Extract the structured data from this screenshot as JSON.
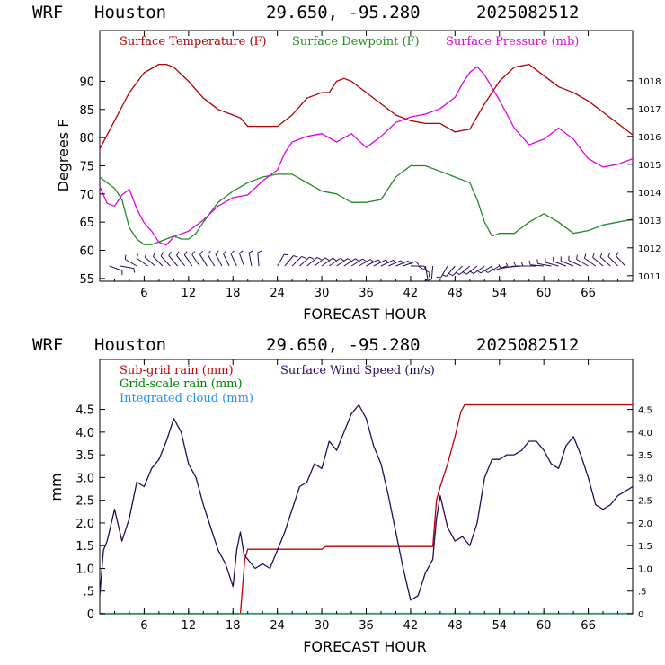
{
  "colors": {
    "temperature": "#b00000",
    "dewpoint": "#228b22",
    "pressure": "#e000e0",
    "subgrid": "#c00000",
    "gridscale": "#008000",
    "cloud": "#1e90ff",
    "wind": "#2a0a5a",
    "barb": "#2a0a5a"
  },
  "chart_data": [
    {
      "type": "line",
      "header": {
        "model": "WRF",
        "location": "Houston",
        "coords": "29.650, -95.280",
        "init": "2025082512"
      },
      "xlabel": "FORECAST HOUR",
      "ylabel": "Degrees F",
      "xlim": [
        0,
        72
      ],
      "ylim": [
        54.5,
        99
      ],
      "ylim_right": [
        1010.8,
        1019.8
      ],
      "xticks": [
        "6",
        "12",
        "18",
        "24",
        "30",
        "36",
        "42",
        "48",
        "54",
        "60",
        "66"
      ],
      "yticks": [
        "55",
        "60",
        "65",
        "70",
        "75",
        "80",
        "85",
        "90"
      ],
      "yticks_right": [
        "1011",
        "1012",
        "1013",
        "1014",
        "1015",
        "1016",
        "1017",
        "1018"
      ],
      "series": [
        {
          "name": "Surface Temperature (F)",
          "axis": "left",
          "x": [
            0,
            2,
            4,
            6,
            8,
            9,
            10,
            12,
            14,
            16,
            18,
            19,
            20,
            22,
            24,
            26,
            28,
            30,
            31,
            32,
            33,
            34,
            36,
            38,
            40,
            42,
            44,
            46,
            48,
            50,
            52,
            54,
            56,
            58,
            60,
            62,
            64,
            66,
            68,
            70,
            72
          ],
          "y": [
            78,
            83,
            88,
            91.5,
            93,
            93,
            92.5,
            90,
            87,
            85,
            84,
            83.5,
            82,
            82,
            82,
            84,
            87,
            88,
            88,
            90,
            90.5,
            90,
            88,
            86,
            84,
            83,
            82.5,
            82.5,
            81,
            81.5,
            86,
            90,
            92.5,
            93,
            91,
            89,
            88,
            86.5,
            84.5,
            82.5,
            80.5
          ]
        },
        {
          "name": "Surface Dewpoint (F)",
          "axis": "left",
          "x": [
            0,
            2,
            3,
            4,
            5,
            6,
            7,
            8,
            9,
            10,
            11,
            12,
            13,
            14,
            16,
            18,
            20,
            22,
            24,
            26,
            28,
            30,
            32,
            34,
            36,
            38,
            40,
            42,
            44,
            46,
            48,
            50,
            51,
            52,
            53,
            54,
            56,
            58,
            60,
            62,
            64,
            66,
            68,
            70,
            72
          ],
          "y": [
            73,
            71,
            69,
            64,
            62,
            61,
            61,
            61.5,
            62,
            62.5,
            62,
            62,
            63,
            65,
            68.5,
            70.5,
            72,
            73,
            73.5,
            73.5,
            72,
            70.5,
            70,
            68.5,
            68.5,
            69,
            73,
            75,
            75,
            74,
            73,
            72,
            69,
            65,
            62.5,
            63,
            63,
            65,
            66.5,
            65,
            63,
            63.5,
            64.5,
            65,
            65.5
          ]
        },
        {
          "name": "Surface Pressure (mb)",
          "axis": "right",
          "x": [
            0,
            1,
            2,
            3,
            4,
            5,
            6,
            7,
            8,
            9,
            10,
            12,
            14,
            16,
            18,
            20,
            22,
            24,
            25,
            26,
            28,
            30,
            32,
            34,
            36,
            38,
            40,
            42,
            44,
            46,
            48,
            49,
            50,
            51,
            52,
            54,
            56,
            58,
            60,
            62,
            64,
            66,
            68,
            70,
            72
          ],
          "y": [
            1014.2,
            1013.6,
            1013.5,
            1013.9,
            1014.1,
            1013.4,
            1012.9,
            1012.6,
            1012.2,
            1012.1,
            1012.4,
            1012.6,
            1013,
            1013.5,
            1013.8,
            1013.9,
            1014.4,
            1014.8,
            1015.4,
            1015.8,
            1016,
            1016.1,
            1015.8,
            1016.1,
            1015.6,
            1016,
            1016.5,
            1016.7,
            1016.8,
            1017,
            1017.4,
            1017.9,
            1018.3,
            1018.5,
            1018.2,
            1017.3,
            1016.3,
            1015.7,
            1015.9,
            1016.3,
            1015.9,
            1015.2,
            1014.9,
            1015,
            1015.2
          ]
        }
      ],
      "wind_barbs": {
        "x": [
          1.3,
          2.8,
          5,
          6.5,
          7.5,
          8.5,
          9.5,
          10.5,
          11.5,
          12.5,
          13.5,
          14.5,
          15.5,
          16.5,
          17.5,
          18.5,
          19.5,
          20.5,
          21.5,
          24,
          25,
          26,
          27,
          28,
          29,
          30,
          31,
          32,
          33,
          34,
          35,
          36,
          37,
          38,
          39,
          40,
          41,
          42,
          43,
          44,
          45,
          47,
          48,
          49,
          50,
          51,
          52,
          53,
          54,
          55,
          56,
          57,
          58,
          59,
          60,
          61,
          62,
          63,
          64,
          65,
          66,
          67,
          68,
          69,
          70,
          71
        ],
        "dir_deg": [
          110,
          100,
          300,
          305,
          310,
          315,
          318,
          320,
          322,
          325,
          326,
          328,
          330,
          332,
          334,
          335,
          340,
          350,
          355,
          30,
          40,
          45,
          48,
          50,
          52,
          54,
          55,
          56,
          57,
          58,
          60,
          62,
          63,
          64,
          66,
          68,
          70,
          90,
          120,
          170,
          185,
          210,
          220,
          225,
          230,
          232,
          235,
          238,
          240,
          250,
          260,
          265,
          270,
          270,
          275,
          280,
          285,
          290,
          292,
          295,
          300,
          305,
          310,
          312,
          315,
          318
        ]
      }
    },
    {
      "type": "line",
      "header": {
        "model": "WRF",
        "location": "Houston",
        "coords": "29.650, -95.280",
        "init": "2025082512"
      },
      "xlabel": "FORECAST HOUR",
      "ylabel": "mm",
      "xlim": [
        0,
        72
      ],
      "ylim": [
        0,
        5.6
      ],
      "ylim_right": [
        0,
        5.6
      ],
      "xticks": [
        "6",
        "12",
        "18",
        "24",
        "30",
        "36",
        "42",
        "48",
        "54",
        "60",
        "66"
      ],
      "yticks": [
        "0",
        ".5",
        "1.0",
        "1.5",
        "2.0",
        "2.5",
        "3.0",
        "3.5",
        "4.0",
        "4.5"
      ],
      "yticks_right": [
        "0",
        ".5",
        "1.0",
        "1.5",
        "2.0",
        "2.5",
        "3.0",
        "3.5",
        "4.0",
        "4.5"
      ],
      "series": [
        {
          "name": "Sub-grid rain (mm)",
          "axis": "left",
          "x": [
            0,
            19,
            19.6,
            20,
            30,
            30.5,
            45,
            45.5,
            46,
            47,
            48,
            48.8,
            49.3,
            72
          ],
          "y": [
            0,
            0,
            1.2,
            1.42,
            1.42,
            1.48,
            1.48,
            2.5,
            2.8,
            3.3,
            3.9,
            4.45,
            4.6,
            4.6
          ]
        },
        {
          "name": "Grid-scale rain (mm)",
          "axis": "left",
          "x": [
            0,
            72
          ],
          "y": [
            0,
            0
          ]
        },
        {
          "name": "Integrated cloud (mm)",
          "axis": "left",
          "x": [
            0,
            72
          ],
          "y": [
            0.01,
            0.01
          ]
        },
        {
          "name": "Surface Wind Speed (m/s)",
          "axis": "right",
          "x": [
            0,
            0.5,
            1,
            2,
            3,
            4,
            5,
            6,
            7,
            8,
            9,
            10,
            11,
            12,
            13,
            14,
            15,
            16,
            17,
            18,
            18.5,
            19,
            19.5,
            20,
            21,
            22,
            23,
            24,
            25,
            26,
            27,
            28,
            29,
            30,
            31,
            32,
            33,
            34,
            35,
            36,
            37,
            38,
            39,
            40,
            41,
            42,
            43,
            44,
            45,
            45.5,
            46,
            47,
            48,
            49,
            50,
            51,
            52,
            53,
            54,
            55,
            56,
            57,
            58,
            59,
            60,
            61,
            62,
            63,
            64,
            65,
            66,
            67,
            68,
            69,
            70,
            71,
            72
          ],
          "y": [
            0.4,
            1.4,
            1.6,
            2.3,
            1.6,
            2.1,
            2.9,
            2.8,
            3.2,
            3.4,
            3.8,
            4.3,
            4.0,
            3.3,
            3.0,
            2.4,
            1.9,
            1.4,
            1.1,
            0.6,
            1.4,
            1.8,
            1.3,
            1.2,
            1.0,
            1.1,
            1.0,
            1.4,
            1.8,
            2.3,
            2.8,
            2.9,
            3.3,
            3.2,
            3.8,
            3.6,
            4.0,
            4.4,
            4.6,
            4.3,
            3.7,
            3.3,
            2.6,
            1.8,
            1.0,
            0.3,
            0.4,
            0.9,
            1.2,
            2.1,
            2.6,
            1.9,
            1.6,
            1.7,
            1.5,
            2.0,
            3.0,
            3.4,
            3.4,
            3.5,
            3.5,
            3.6,
            3.8,
            3.8,
            3.6,
            3.3,
            3.2,
            3.7,
            3.9,
            3.5,
            3.0,
            2.4,
            2.3,
            2.4,
            2.6,
            2.7,
            2.8
          ]
        }
      ]
    }
  ]
}
